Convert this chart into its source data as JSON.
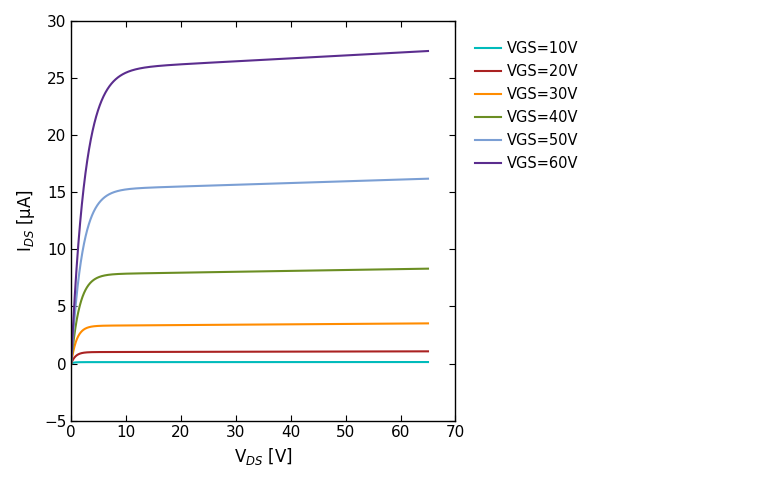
{
  "title": "",
  "xlabel": "V$_{DS}$ [V]",
  "ylabel": "I$_{DS}$ [μA]",
  "xlim": [
    0,
    70
  ],
  "ylim": [
    -5,
    30
  ],
  "xticks": [
    0,
    10,
    20,
    30,
    40,
    50,
    60,
    70
  ],
  "yticks": [
    -5,
    0,
    5,
    10,
    15,
    20,
    25,
    30
  ],
  "curves": [
    {
      "label": "VGS=10V",
      "color": "#00BBBB",
      "Isat": 0.12,
      "tau": 0.5
    },
    {
      "label": "VGS=20V",
      "color": "#AA2222",
      "Isat": 1.0,
      "tau": 0.8
    },
    {
      "label": "VGS=30V",
      "color": "#FF8C00",
      "Isat": 3.3,
      "tau": 1.0
    },
    {
      "label": "VGS=40V",
      "color": "#6B8E23",
      "Isat": 7.8,
      "tau": 1.5
    },
    {
      "label": "VGS=50V",
      "color": "#7B9FD4",
      "Isat": 15.2,
      "tau": 2.0
    },
    {
      "label": "VGS=60V",
      "color": "#5B2D8E",
      "Isat": 25.7,
      "tau": 2.5
    }
  ],
  "figsize": [
    7.72,
    4.82
  ],
  "dpi": 100
}
